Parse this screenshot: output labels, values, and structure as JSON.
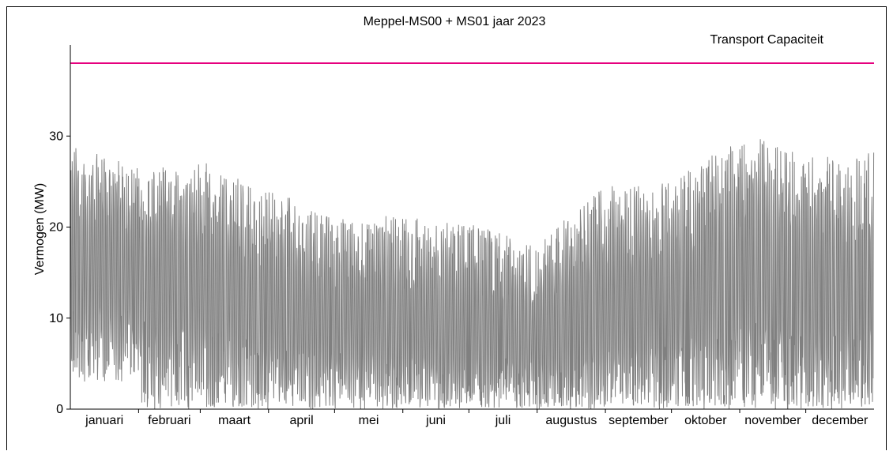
{
  "chart_data": {
    "type": "line",
    "title": "Meppel-MS00 + MS01 jaar 2023",
    "ylabel": "Vermogen (MW)",
    "xlabel": "",
    "ylim": [
      0,
      40
    ],
    "yticks": [
      0,
      10,
      20,
      30
    ],
    "x_categories": [
      "januari",
      "februari",
      "maart",
      "april",
      "mei",
      "juni",
      "juli",
      "augustus",
      "september",
      "oktober",
      "november",
      "december"
    ],
    "grid": false,
    "series": [
      {
        "name": "",
        "color": "#808080",
        "monthly_min": [
          3,
          0,
          0,
          0,
          0,
          0,
          0,
          0,
          0,
          0,
          0,
          0
        ],
        "monthly_max": [
          29.1,
          26.7,
          27.3,
          24.3,
          21.0,
          21.3,
          20.4,
          18.3,
          24.5,
          24.9,
          30.3,
          28.3
        ],
        "monthly_mean": [
          15.5,
          14.5,
          12.5,
          10.5,
          9.0,
          8.5,
          8.0,
          8.0,
          9.5,
          10.5,
          14.0,
          12.5
        ]
      }
    ],
    "reference_line": {
      "label": "Transport Capaciteit",
      "value": 38,
      "color": "#e6007e"
    }
  }
}
